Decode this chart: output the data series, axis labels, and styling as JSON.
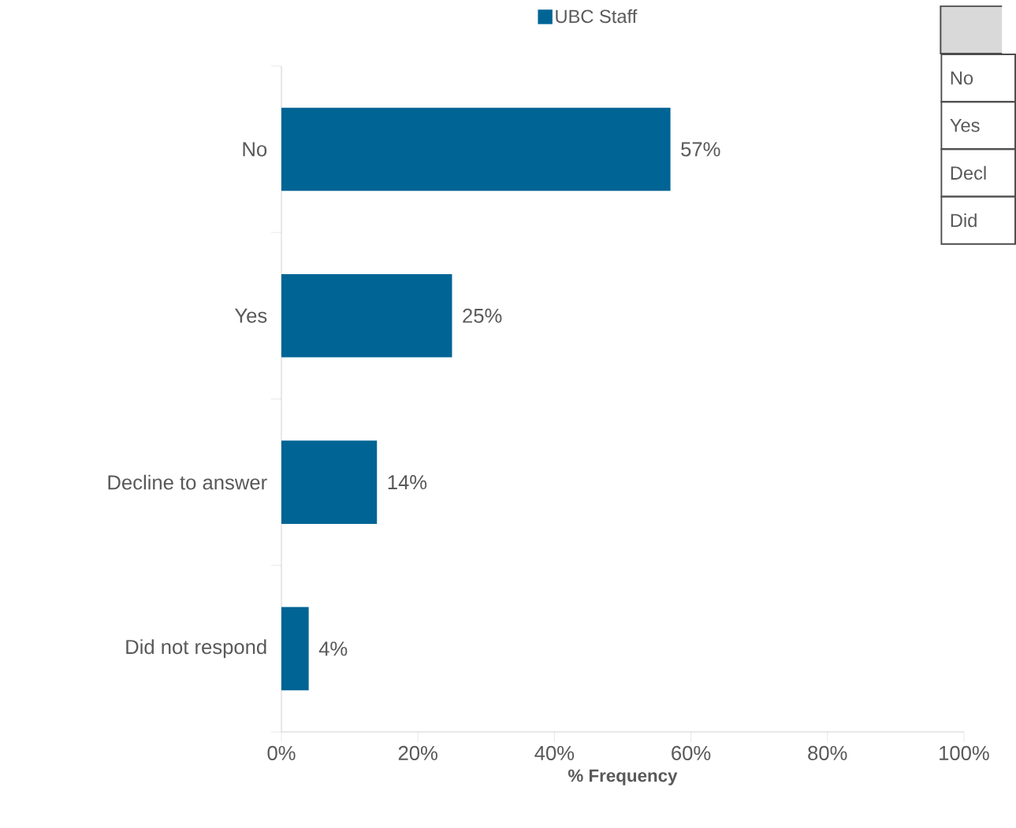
{
  "chart_data": {
    "type": "bar",
    "orientation": "horizontal",
    "xlabel": "% Frequency",
    "categories": [
      "No",
      "Yes",
      "Decline to answer",
      "Did not respond"
    ],
    "series": [
      {
        "name": "UBC Staff",
        "color": "#006494",
        "values": [
          57,
          25,
          14,
          4
        ],
        "value_labels": [
          "57%",
          "25%",
          "14%",
          "4%"
        ]
      }
    ],
    "xlim": [
      0,
      100
    ],
    "xticks": [
      {
        "value": 0,
        "label": "0%"
      },
      {
        "value": 20,
        "label": "20%"
      },
      {
        "value": 40,
        "label": "40%"
      },
      {
        "value": 60,
        "label": "60%"
      },
      {
        "value": 80,
        "label": "80%"
      },
      {
        "value": 100,
        "label": "100%"
      }
    ],
    "legend": "top",
    "annotations": [
      "No",
      "Yes",
      "Decl",
      "Did"
    ]
  }
}
